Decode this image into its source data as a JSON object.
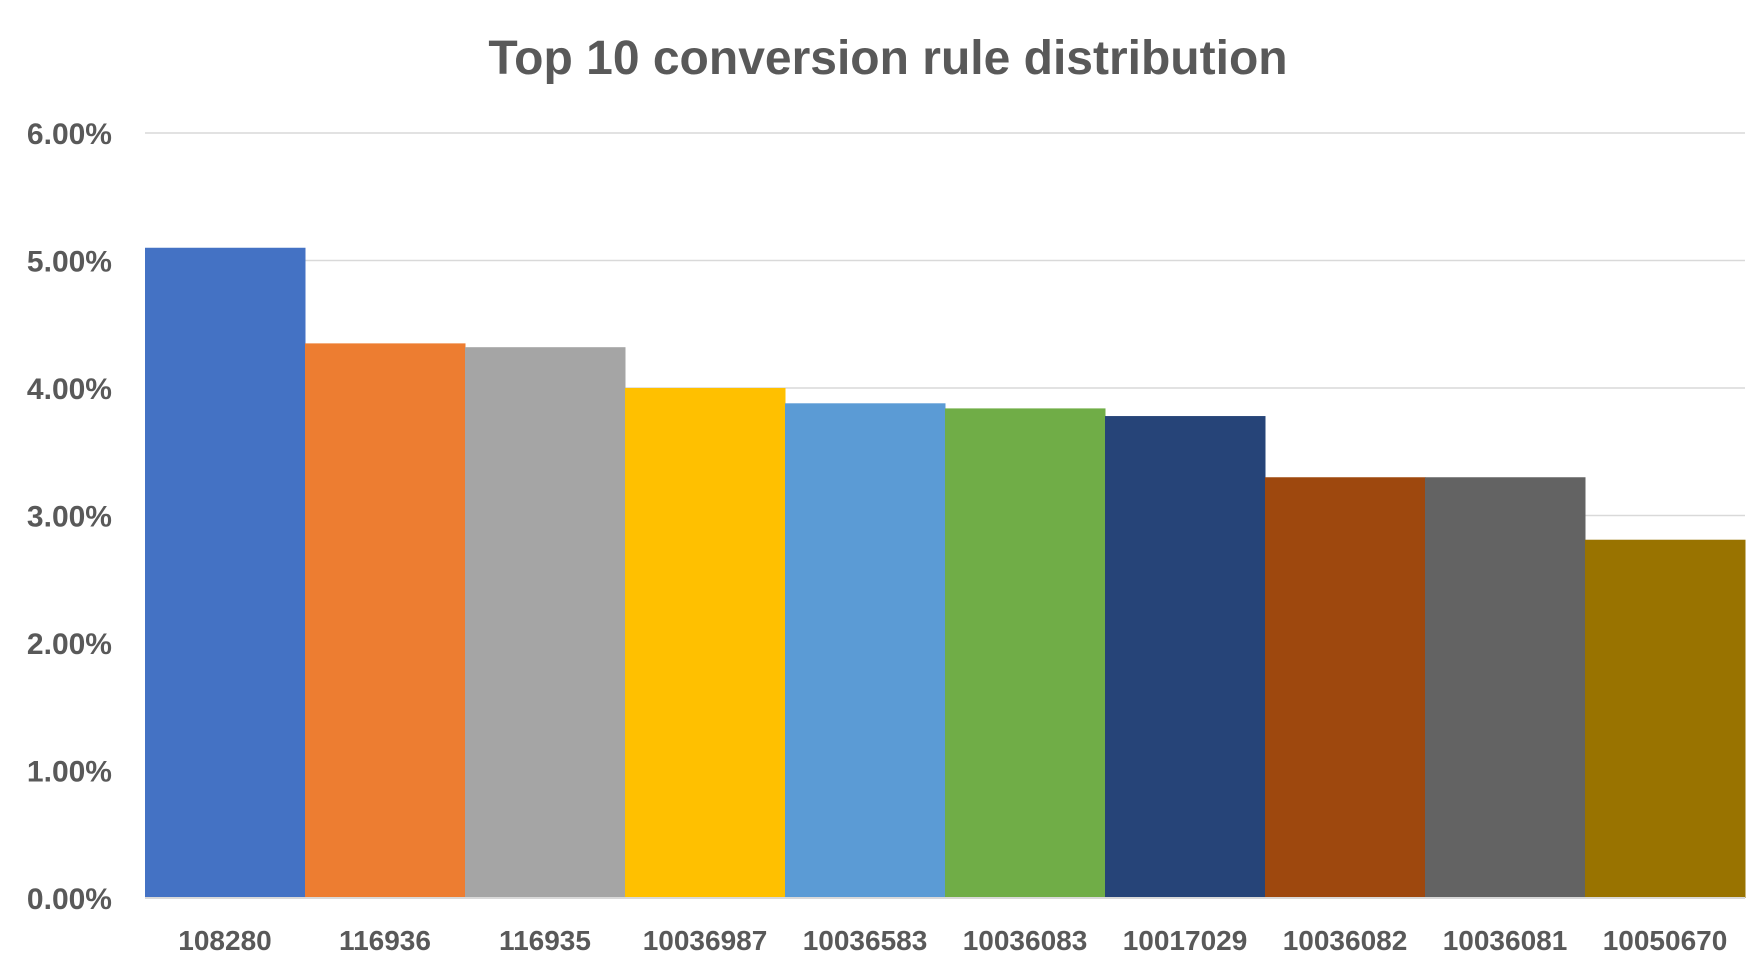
{
  "chart_data": {
    "type": "bar",
    "title": "Top 10 conversion rule distribution",
    "xlabel": "",
    "ylabel": "",
    "categories": [
      "108280",
      "116936",
      "116935",
      "10036987",
      "10036583",
      "10036083",
      "10017029",
      "10036082",
      "10036081",
      "10050670"
    ],
    "values": [
      5.1,
      4.35,
      4.32,
      4.0,
      3.88,
      3.84,
      3.78,
      3.3,
      3.3,
      2.81
    ],
    "colors": [
      "#4472C4",
      "#ED7D31",
      "#A5A5A5",
      "#FFC000",
      "#5B9BD5",
      "#70AD47",
      "#264478",
      "#9E480E",
      "#636363",
      "#997300"
    ],
    "ylim": [
      0,
      6
    ],
    "yticks": [
      "0.00%",
      "1.00%",
      "2.00%",
      "3.00%",
      "4.00%",
      "5.00%",
      "6.00%"
    ],
    "grid": true,
    "legend": "none"
  }
}
